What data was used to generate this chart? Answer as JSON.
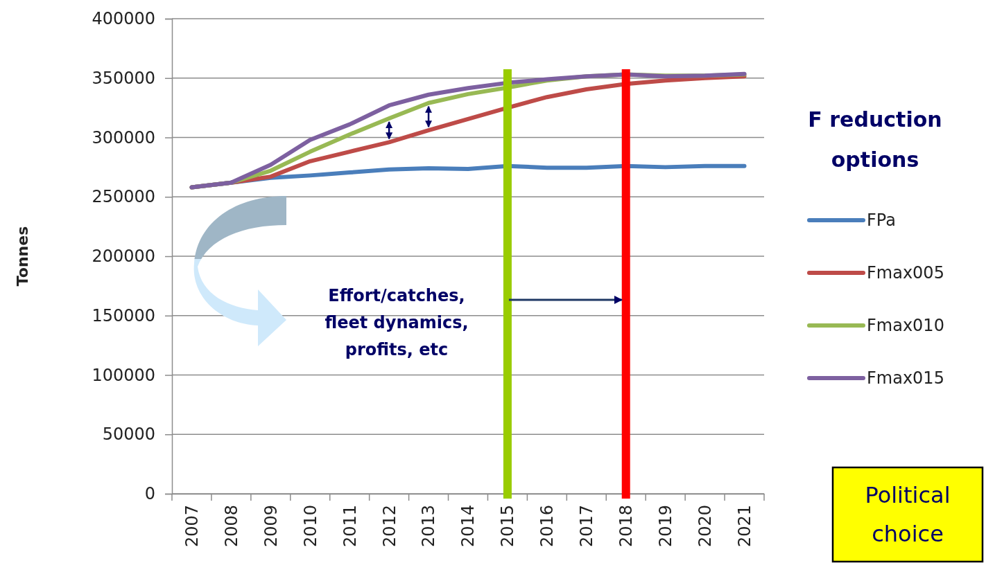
{
  "chart_data": {
    "type": "line",
    "ylabel": "Tonnes",
    "legend_title": "F reduction options",
    "categories": [
      "2007",
      "2008",
      "2009",
      "2010",
      "2011",
      "2012",
      "2013",
      "2014",
      "2015",
      "2016",
      "2017",
      "2018",
      "2019",
      "2020",
      "2021"
    ],
    "series": [
      {
        "name": "FPa",
        "color": "#4a7ebb",
        "values": [
          258000,
          262000,
          266000,
          268000,
          270500,
          273000,
          274000,
          273500,
          276000,
          274500,
          274500,
          276000,
          275000,
          276000,
          276000
        ]
      },
      {
        "name": "Fmax005",
        "color": "#be4b48",
        "values": [
          258000,
          262000,
          267000,
          280000,
          288000,
          296000,
          306000,
          315500,
          325000,
          334000,
          340500,
          345000,
          348000,
          350000,
          351500
        ]
      },
      {
        "name": "Fmax010",
        "color": "#98b954",
        "values": [
          258000,
          262000,
          272000,
          288000,
          302500,
          316000,
          329000,
          336500,
          342000,
          348000,
          351500,
          353000,
          352000,
          352000,
          353000
        ]
      },
      {
        "name": "Fmax015",
        "color": "#7d60a0",
        "values": [
          258000,
          262000,
          277000,
          298000,
          311000,
          327000,
          336000,
          341500,
          346000,
          349000,
          351500,
          353000,
          351500,
          352000,
          353500
        ]
      }
    ],
    "ylim": [
      0,
      400000
    ],
    "yticks": [
      0,
      50000,
      100000,
      150000,
      200000,
      250000,
      300000,
      350000,
      400000
    ],
    "grid": "y",
    "legend": "right",
    "marker": "none",
    "line_style": "solid",
    "ref_lines": [
      {
        "axis": "x",
        "value": "2015",
        "color": "#99cc00"
      },
      {
        "axis": "x",
        "value": "2018",
        "color": "#ff0000"
      }
    ],
    "annotations": [
      "Effort/catches,\nfleet dynamics,\nprofits, etc",
      "Political\nchoice"
    ]
  }
}
